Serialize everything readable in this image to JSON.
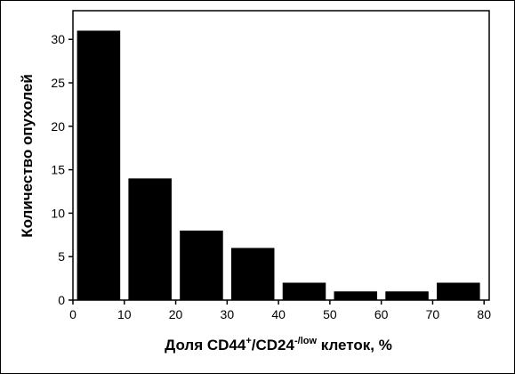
{
  "chart_data": {
    "type": "histogram",
    "x_label": [
      "Доля CD44",
      "+",
      "/CD24",
      "-/low",
      " клеток, %"
    ],
    "y_label": "Количество опухолей",
    "bins": [
      0,
      10,
      20,
      30,
      40,
      50,
      60,
      70,
      80
    ],
    "values": [
      31,
      14,
      8,
      6,
      2,
      1,
      1,
      2
    ],
    "color": "#000000",
    "xlim": [
      0,
      81
    ],
    "xticks": [
      0,
      10,
      20,
      30,
      40,
      50,
      60,
      70,
      80
    ],
    "ylim": [
      0,
      33.3
    ],
    "yticks": [
      0,
      5,
      10,
      15,
      20,
      25,
      30
    ]
  }
}
